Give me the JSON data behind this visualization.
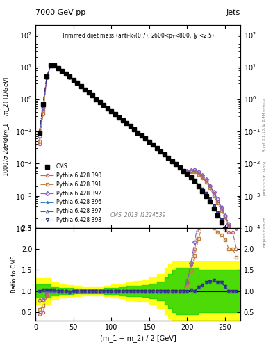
{
  "title_top": "7000 GeV pp",
  "title_right": "Jets",
  "plot_title": "Trimmed dijet mass (anti-k_{T}(0.7), 2600<p_{T}<800, |y|<2.5)",
  "xlabel": "(m_1 + m_2) / 2 [GeV]",
  "ylabel_main": "1000/\\sigma 2d\\sigma/d(m_1 + m_2) [1/GeV]",
  "ylabel_ratio": "Ratio to CMS",
  "watermark": "CMS_2013_I1224539",
  "side_text": "Rivet 3.1.10, ≥ 2.4M events",
  "arxiv_text": "[arXiv:1306.3436]",
  "mcplots_text": "mcplots.cern.ch",
  "xlim": [
    0,
    270
  ],
  "ylim_main": [
    0.0001,
    200
  ],
  "ylim_ratio": [
    0.3,
    2.5
  ],
  "x_data": [
    5,
    10,
    15,
    20,
    25,
    30,
    35,
    40,
    45,
    50,
    55,
    60,
    65,
    70,
    75,
    80,
    85,
    90,
    95,
    100,
    105,
    110,
    115,
    120,
    125,
    130,
    135,
    140,
    145,
    150,
    155,
    160,
    165,
    170,
    175,
    180,
    185,
    190,
    195,
    200,
    205,
    210,
    215,
    220,
    225,
    230,
    235,
    240,
    245,
    250,
    255,
    260,
    265
  ],
  "cms_data": [
    0.09,
    0.7,
    5,
    11,
    11,
    9,
    7.5,
    6,
    5,
    4,
    3.2,
    2.5,
    2.0,
    1.6,
    1.3,
    1.0,
    0.8,
    0.65,
    0.52,
    0.42,
    0.34,
    0.27,
    0.22,
    0.18,
    0.145,
    0.115,
    0.092,
    0.074,
    0.06,
    0.048,
    0.038,
    0.03,
    0.024,
    0.019,
    0.015,
    0.012,
    0.0095,
    0.0075,
    0.006,
    0.0048,
    0.0037,
    0.003,
    0.002,
    0.0014,
    0.001,
    0.00065,
    0.0004,
    0.00025,
    0.00015,
    9e-05,
    5e-05,
    2.5e-05,
    1e-05
  ],
  "pythia_390": [
    0.04,
    0.35,
    4.5,
    11,
    11,
    9,
    7.5,
    6,
    4.9,
    4,
    3.2,
    2.5,
    2.0,
    1.6,
    1.3,
    1.0,
    0.8,
    0.65,
    0.52,
    0.42,
    0.34,
    0.27,
    0.22,
    0.18,
    0.145,
    0.115,
    0.092,
    0.074,
    0.06,
    0.048,
    0.038,
    0.03,
    0.024,
    0.019,
    0.015,
    0.012,
    0.0095,
    0.0075,
    0.006,
    0.006,
    0.006,
    0.006,
    0.005,
    0.004,
    0.003,
    0.002,
    0.0012,
    0.0007,
    0.0004,
    0.00022,
    0.00012,
    6e-05,
    2e-05
  ],
  "pythia_391": [
    0.05,
    0.45,
    4.8,
    11,
    11,
    9,
    7.5,
    6,
    4.9,
    4,
    3.2,
    2.5,
    2.0,
    1.6,
    1.3,
    1.0,
    0.8,
    0.65,
    0.52,
    0.42,
    0.34,
    0.27,
    0.22,
    0.18,
    0.145,
    0.115,
    0.092,
    0.074,
    0.06,
    0.048,
    0.038,
    0.03,
    0.024,
    0.019,
    0.015,
    0.012,
    0.0095,
    0.0075,
    0.006,
    0.0055,
    0.0055,
    0.0055,
    0.0045,
    0.0036,
    0.0027,
    0.0018,
    0.001,
    0.0006,
    0.00035,
    0.0002,
    0.0001,
    5e-05,
    1.8e-05
  ],
  "pythia_392": [
    0.07,
    0.55,
    4.9,
    11,
    11,
    9,
    7.5,
    6,
    4.9,
    4,
    3.2,
    2.5,
    2.0,
    1.6,
    1.3,
    1.0,
    0.8,
    0.65,
    0.52,
    0.42,
    0.34,
    0.27,
    0.22,
    0.18,
    0.145,
    0.115,
    0.092,
    0.074,
    0.06,
    0.048,
    0.038,
    0.03,
    0.024,
    0.019,
    0.015,
    0.012,
    0.0095,
    0.0075,
    0.006,
    0.0058,
    0.0062,
    0.0065,
    0.0055,
    0.0043,
    0.0032,
    0.0021,
    0.0013,
    0.0008,
    0.00045,
    0.00025,
    0.000135,
    7e-05,
    2.5e-05
  ],
  "pythia_396": [
    0.09,
    0.72,
    5.1,
    11,
    11,
    9,
    7.5,
    6,
    4.9,
    4,
    3.2,
    2.5,
    2.0,
    1.6,
    1.3,
    1.0,
    0.8,
    0.65,
    0.52,
    0.42,
    0.34,
    0.27,
    0.22,
    0.18,
    0.145,
    0.115,
    0.092,
    0.074,
    0.06,
    0.048,
    0.038,
    0.03,
    0.024,
    0.019,
    0.015,
    0.012,
    0.0095,
    0.0075,
    0.006,
    0.0048,
    0.0038,
    0.003,
    0.0022,
    0.0016,
    0.0012,
    0.0008,
    0.0005,
    0.0003,
    0.00018,
    0.0001,
    5e-05,
    2.5e-05,
    1e-05
  ],
  "pythia_397": [
    0.09,
    0.72,
    5.1,
    11.2,
    11.2,
    9,
    7.5,
    6,
    4.9,
    4,
    3.2,
    2.5,
    2.0,
    1.6,
    1.3,
    1.0,
    0.8,
    0.65,
    0.52,
    0.42,
    0.34,
    0.27,
    0.22,
    0.18,
    0.145,
    0.115,
    0.092,
    0.074,
    0.06,
    0.048,
    0.038,
    0.03,
    0.024,
    0.019,
    0.015,
    0.012,
    0.0095,
    0.0075,
    0.006,
    0.0048,
    0.0038,
    0.003,
    0.0022,
    0.0016,
    0.0012,
    0.0008,
    0.0005,
    0.0003,
    0.00018,
    0.0001,
    5e-05,
    2.5e-05,
    1e-05
  ],
  "pythia_398": [
    0.09,
    0.72,
    5.1,
    11.2,
    11.2,
    9,
    7.5,
    6,
    4.9,
    4,
    3.2,
    2.5,
    2.0,
    1.6,
    1.3,
    1.0,
    0.8,
    0.65,
    0.52,
    0.42,
    0.34,
    0.27,
    0.22,
    0.18,
    0.145,
    0.115,
    0.092,
    0.074,
    0.06,
    0.048,
    0.038,
    0.03,
    0.024,
    0.019,
    0.015,
    0.012,
    0.0095,
    0.0075,
    0.006,
    0.0048,
    0.0038,
    0.003,
    0.0022,
    0.0016,
    0.0012,
    0.0008,
    0.0005,
    0.0003,
    0.00018,
    0.0001,
    5e-05,
    2.5e-05,
    1e-05
  ],
  "colors": {
    "390": "#c06060",
    "391": "#c08040",
    "392": "#8060c0",
    "396": "#4080c0",
    "397": "#4060a0",
    "398": "#303080"
  },
  "markers": {
    "390": "o",
    "391": "s",
    "392": "D",
    "396": "*",
    "397": "^",
    "398": "v"
  },
  "green_band_x": [
    0,
    5,
    10,
    20,
    30,
    40,
    50,
    60,
    70,
    80,
    90,
    100,
    110,
    120,
    130,
    140,
    150,
    160,
    170,
    175,
    180,
    185,
    195,
    205,
    215,
    225,
    235,
    245,
    255,
    265,
    270
  ],
  "green_band_lo": [
    0.85,
    0.85,
    0.85,
    0.9,
    0.92,
    0.93,
    0.94,
    0.95,
    0.95,
    0.95,
    0.93,
    0.92,
    0.9,
    0.88,
    0.87,
    0.86,
    0.82,
    0.78,
    0.68,
    0.6,
    0.5,
    0.45,
    0.45,
    0.45,
    0.5,
    0.5,
    0.5,
    0.5,
    0.5,
    0.5,
    0.5
  ],
  "green_band_hi": [
    1.15,
    1.15,
    1.15,
    1.1,
    1.08,
    1.07,
    1.06,
    1.05,
    1.05,
    1.05,
    1.07,
    1.08,
    1.1,
    1.12,
    1.13,
    1.14,
    1.18,
    1.22,
    1.32,
    1.4,
    1.5,
    1.55,
    1.55,
    1.55,
    1.5,
    1.5,
    1.5,
    1.5,
    1.5,
    1.5,
    1.5
  ],
  "yellow_band_x": [
    0,
    5,
    10,
    20,
    30,
    40,
    50,
    60,
    70,
    80,
    90,
    100,
    110,
    120,
    130,
    140,
    150,
    160,
    170,
    175,
    180,
    185,
    195,
    205,
    215,
    225,
    235,
    245,
    255,
    265,
    270
  ],
  "yellow_band_lo": [
    0.7,
    0.7,
    0.7,
    0.8,
    0.84,
    0.86,
    0.88,
    0.9,
    0.9,
    0.9,
    0.87,
    0.85,
    0.82,
    0.78,
    0.76,
    0.74,
    0.68,
    0.6,
    0.45,
    0.35,
    0.3,
    0.3,
    0.3,
    0.3,
    0.3,
    0.3,
    0.3,
    0.3,
    0.3,
    0.3,
    0.3
  ],
  "yellow_band_hi": [
    1.3,
    1.3,
    1.3,
    1.2,
    1.16,
    1.14,
    1.12,
    1.1,
    1.1,
    1.1,
    1.13,
    1.15,
    1.18,
    1.22,
    1.24,
    1.26,
    1.32,
    1.4,
    1.55,
    1.65,
    1.7,
    1.7,
    1.7,
    1.7,
    1.7,
    1.7,
    1.7,
    1.7,
    1.7,
    1.7,
    1.7
  ]
}
